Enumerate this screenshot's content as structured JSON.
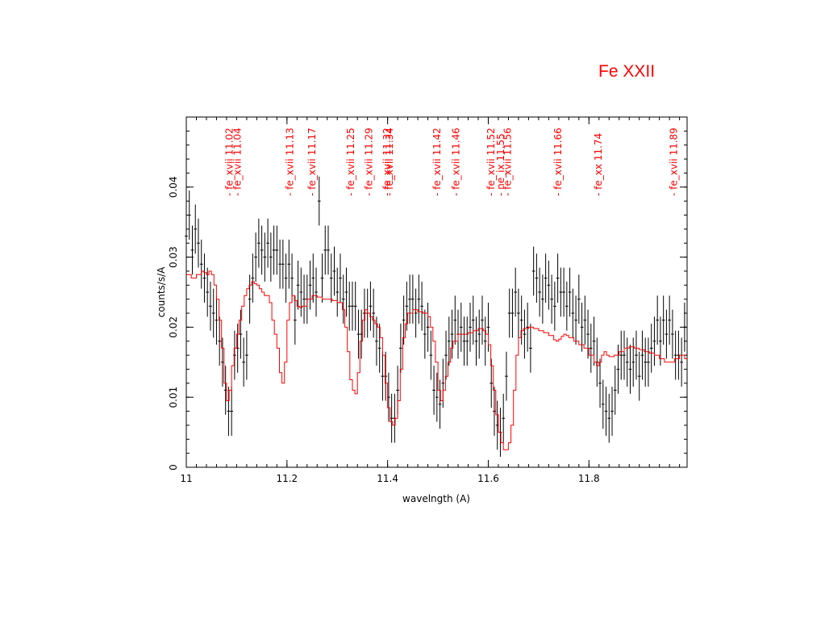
{
  "page": {
    "title": "Fe XXII"
  },
  "chart_data": {
    "type": "scatter",
    "title": "Fe XXII",
    "xlabel": "wavelngth (A)",
    "ylabel": "counts/s/A",
    "xlim": [
      11.0,
      11.995
    ],
    "ylim": [
      0,
      0.05
    ],
    "x_ticks": [
      11,
      11.2,
      11.4,
      11.6,
      11.8
    ],
    "x_tick_labels": [
      "11",
      "11.2",
      "11.4",
      "11.6",
      "11.8"
    ],
    "y_ticks": [
      0,
      0.01,
      0.02,
      0.03,
      0.04
    ],
    "y_tick_labels": [
      "0",
      "0.01",
      "0.02",
      "0.03",
      "0.04"
    ],
    "colors": {
      "data": "#000000",
      "model": "#ff0000",
      "labels": "#ff0000"
    },
    "line_labels": [
      {
        "x": 11.092,
        "text": "- fe_xvii  11.02"
      },
      {
        "x": 11.108,
        "text": "- fe_xvii  11.04"
      },
      {
        "x": 11.212,
        "text": "- fe_xvii  11.13"
      },
      {
        "x": 11.256,
        "text": "- fe_xvii  11.17"
      },
      {
        "x": 11.333,
        "text": "- fe_xvii  11.25"
      },
      {
        "x": 11.369,
        "text": "- fe_xvii  11.29"
      },
      {
        "x": 11.405,
        "text": "- fe_xvii  11.32"
      },
      {
        "x": 11.41,
        "text": "- fe_xvii  11.34"
      },
      {
        "x": 11.505,
        "text": "- fe_xvii  11.42"
      },
      {
        "x": 11.542,
        "text": "- fe_xvii  11.46"
      },
      {
        "x": 11.612,
        "text": "- fe_xvii  11.52"
      },
      {
        "x": 11.631,
        "text": "- ne_ix    11.55"
      },
      {
        "x": 11.645,
        "text": "- fe_xvii  11.56"
      },
      {
        "x": 11.745,
        "text": "- fe_xvii  11.66"
      },
      {
        "x": 11.825,
        "text": "- fe_xx    11.74"
      },
      {
        "x": 11.975,
        "text": "- fe_xvii  11.89"
      }
    ],
    "series": [
      {
        "kind": "errorbar",
        "x": [
          11.0,
          11.006,
          11.012,
          11.018,
          11.024,
          11.03,
          11.036,
          11.042,
          11.048,
          11.054,
          11.06,
          11.066,
          11.072,
          11.078,
          11.084,
          11.09,
          11.096,
          11.102,
          11.108,
          11.114,
          11.12,
          11.126,
          11.132,
          11.138,
          11.144,
          11.15,
          11.156,
          11.162,
          11.168,
          11.174,
          11.18,
          11.186,
          11.192,
          11.198,
          11.204,
          11.21,
          11.216,
          11.222,
          11.228,
          11.234,
          11.24,
          11.246,
          11.252,
          11.258,
          11.264,
          11.27,
          11.276,
          11.282,
          11.288,
          11.294,
          11.3,
          11.306,
          11.312,
          11.318,
          11.324,
          11.33,
          11.336,
          11.342,
          11.348,
          11.354,
          11.36,
          11.366,
          11.372,
          11.378,
          11.384,
          11.39,
          11.396,
          11.402,
          11.408,
          11.414,
          11.42,
          11.426,
          11.432,
          11.438,
          11.444,
          11.45,
          11.456,
          11.462,
          11.468,
          11.474,
          11.48,
          11.486,
          11.492,
          11.498,
          11.504,
          11.51,
          11.516,
          11.522,
          11.528,
          11.534,
          11.54,
          11.546,
          11.552,
          11.558,
          11.564,
          11.57,
          11.576,
          11.582,
          11.588,
          11.594,
          11.6,
          11.606,
          11.612,
          11.618,
          11.624,
          11.63,
          11.636,
          11.642,
          11.648,
          11.654,
          11.66,
          11.666,
          11.672,
          11.678,
          11.684,
          11.69,
          11.696,
          11.702,
          11.708,
          11.714,
          11.72,
          11.726,
          11.732,
          11.738,
          11.744,
          11.75,
          11.756,
          11.762,
          11.768,
          11.774,
          11.78,
          11.786,
          11.792,
          11.798,
          11.804,
          11.81,
          11.816,
          11.822,
          11.828,
          11.834,
          11.84,
          11.846,
          11.852,
          11.858,
          11.864,
          11.87,
          11.876,
          11.882,
          11.888,
          11.894,
          11.9,
          11.906,
          11.912,
          11.918,
          11.924,
          11.93,
          11.936,
          11.942,
          11.948,
          11.954,
          11.96,
          11.966,
          11.972,
          11.978,
          11.984,
          11.99
        ],
        "y": [
          0.033,
          0.036,
          0.031,
          0.034,
          0.032,
          0.029,
          0.027,
          0.025,
          0.023,
          0.022,
          0.021,
          0.018,
          0.015,
          0.011,
          0.008,
          0.008,
          0.016,
          0.017,
          0.019,
          0.015,
          0.016,
          0.024,
          0.027,
          0.03,
          0.032,
          0.031,
          0.03,
          0.032,
          0.03,
          0.031,
          0.031,
          0.029,
          0.029,
          0.027,
          0.029,
          0.027,
          0.021,
          0.026,
          0.025,
          0.024,
          0.024,
          0.026,
          0.027,
          0.025,
          0.038,
          0.027,
          0.031,
          0.031,
          0.027,
          0.028,
          0.025,
          0.027,
          0.024,
          0.025,
          0.023,
          0.023,
          0.023,
          0.019,
          0.019,
          0.022,
          0.022,
          0.023,
          0.022,
          0.018,
          0.017,
          0.013,
          0.013,
          0.01,
          0.007,
          0.007,
          0.011,
          0.017,
          0.021,
          0.023,
          0.024,
          0.024,
          0.022,
          0.024,
          0.023,
          0.019,
          0.02,
          0.016,
          0.011,
          0.01,
          0.009,
          0.012,
          0.016,
          0.018,
          0.019,
          0.021,
          0.019,
          0.02,
          0.018,
          0.018,
          0.02,
          0.021,
          0.018,
          0.019,
          0.021,
          0.018,
          0.02,
          0.012,
          0.008,
          0.006,
          0.005,
          0.007,
          0.013,
          0.022,
          0.022,
          0.025,
          0.022,
          0.021,
          0.019,
          0.02,
          0.017,
          0.028,
          0.027,
          0.025,
          0.024,
          0.027,
          0.026,
          0.024,
          0.023,
          0.027,
          0.025,
          0.025,
          0.023,
          0.025,
          0.022,
          0.021,
          0.024,
          0.02,
          0.021,
          0.019,
          0.017,
          0.018,
          0.015,
          0.012,
          0.009,
          0.008,
          0.007,
          0.008,
          0.011,
          0.014,
          0.016,
          0.016,
          0.015,
          0.014,
          0.015,
          0.016,
          0.013,
          0.016,
          0.015,
          0.015,
          0.017,
          0.018,
          0.021,
          0.018,
          0.021,
          0.019,
          0.021,
          0.019,
          0.016,
          0.016,
          0.015,
          0.02
        ],
        "err": 0.0035
      },
      {
        "kind": "step",
        "x": [
          11.0,
          11.01,
          11.02,
          11.03,
          11.035,
          11.04,
          11.045,
          11.05,
          11.055,
          11.06,
          11.065,
          11.07,
          11.075,
          11.08,
          11.085,
          11.09,
          11.095,
          11.1,
          11.105,
          11.11,
          11.115,
          11.12,
          11.125,
          11.13,
          11.135,
          11.14,
          11.145,
          11.15,
          11.155,
          11.16,
          11.165,
          11.17,
          11.175,
          11.18,
          11.185,
          11.19,
          11.195,
          11.2,
          11.205,
          11.21,
          11.215,
          11.22,
          11.225,
          11.23,
          11.24,
          11.25,
          11.26,
          11.27,
          11.28,
          11.29,
          11.3,
          11.31,
          11.315,
          11.32,
          11.325,
          11.33,
          11.335,
          11.34,
          11.345,
          11.35,
          11.355,
          11.36,
          11.365,
          11.37,
          11.375,
          11.38,
          11.385,
          11.39,
          11.395,
          11.4,
          11.405,
          11.41,
          11.415,
          11.42,
          11.425,
          11.43,
          11.435,
          11.44,
          11.45,
          11.46,
          11.47,
          11.48,
          11.485,
          11.49,
          11.495,
          11.5,
          11.505,
          11.51,
          11.515,
          11.52,
          11.525,
          11.53,
          11.54,
          11.55,
          11.56,
          11.57,
          11.58,
          11.59,
          11.595,
          11.6,
          11.605,
          11.61,
          11.615,
          11.62,
          11.625,
          11.63,
          11.635,
          11.64,
          11.645,
          11.65,
          11.655,
          11.66,
          11.665,
          11.67,
          11.68,
          11.69,
          11.7,
          11.71,
          11.72,
          11.73,
          11.735,
          11.74,
          11.745,
          11.75,
          11.755,
          11.76,
          11.77,
          11.78,
          11.79,
          11.8,
          11.81,
          11.815,
          11.82,
          11.825,
          11.83,
          11.835,
          11.84,
          11.85,
          11.86,
          11.87,
          11.88,
          11.89,
          11.9,
          11.91,
          11.92,
          11.93,
          11.94,
          11.95,
          11.96,
          11.97,
          11.98,
          11.99
        ],
        "y": [
          0.0275,
          0.027,
          0.0275,
          0.028,
          0.0278,
          0.0275,
          0.028,
          0.0275,
          0.026,
          0.024,
          0.021,
          0.017,
          0.012,
          0.0095,
          0.011,
          0.0145,
          0.017,
          0.019,
          0.021,
          0.023,
          0.0245,
          0.0255,
          0.026,
          0.0265,
          0.0262,
          0.026,
          0.0255,
          0.025,
          0.0245,
          0.0245,
          0.0235,
          0.021,
          0.019,
          0.017,
          0.0135,
          0.012,
          0.015,
          0.021,
          0.0235,
          0.0245,
          0.0238,
          0.023,
          0.0228,
          0.023,
          0.024,
          0.0245,
          0.0243,
          0.024,
          0.024,
          0.0238,
          0.0235,
          0.0225,
          0.02,
          0.0165,
          0.0125,
          0.011,
          0.0105,
          0.0135,
          0.018,
          0.021,
          0.0225,
          0.022,
          0.0215,
          0.021,
          0.0205,
          0.02,
          0.0185,
          0.016,
          0.012,
          0.0085,
          0.0065,
          0.006,
          0.007,
          0.0095,
          0.014,
          0.0185,
          0.0205,
          0.022,
          0.0225,
          0.0222,
          0.022,
          0.0215,
          0.02,
          0.018,
          0.015,
          0.011,
          0.0095,
          0.011,
          0.013,
          0.015,
          0.017,
          0.018,
          0.019,
          0.019,
          0.0192,
          0.0195,
          0.0198,
          0.0195,
          0.019,
          0.0175,
          0.0145,
          0.011,
          0.0075,
          0.005,
          0.0035,
          0.0025,
          0.0025,
          0.0035,
          0.006,
          0.011,
          0.016,
          0.0185,
          0.0195,
          0.0198,
          0.02,
          0.0198,
          0.0195,
          0.0192,
          0.0188,
          0.0182,
          0.018,
          0.0183,
          0.0187,
          0.019,
          0.0188,
          0.0185,
          0.018,
          0.0175,
          0.017,
          0.016,
          0.015,
          0.0145,
          0.015,
          0.016,
          0.0165,
          0.016,
          0.0158,
          0.016,
          0.0165,
          0.017,
          0.0172,
          0.017,
          0.0168,
          0.0165,
          0.0163,
          0.016,
          0.0155,
          0.015,
          0.015,
          0.0155,
          0.016,
          0.0155
        ]
      }
    ]
  }
}
